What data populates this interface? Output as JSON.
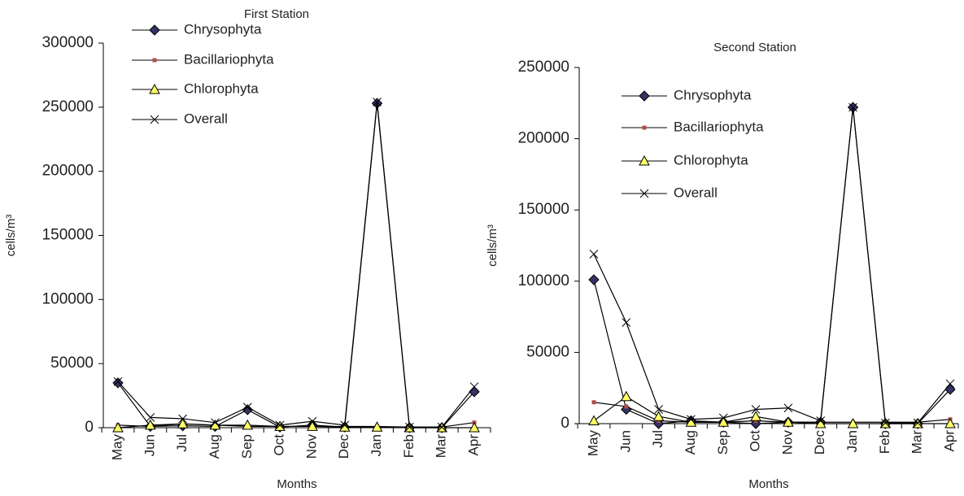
{
  "chart_data": [
    {
      "type": "line",
      "title": "First Station",
      "x_label": "Months",
      "y_label": "cells/m³",
      "categories": [
        "May",
        "Jun",
        "Jul",
        "Aug",
        "Sep",
        "Oct",
        "Nov",
        "Dec",
        "Jan",
        "Feb",
        "Mar",
        "Apr"
      ],
      "ylim": [
        0,
        300000
      ],
      "yticks": [
        0,
        50000,
        100000,
        150000,
        200000,
        250000,
        300000
      ],
      "series": [
        {
          "name": "Chrysophyta",
          "color": "#333366",
          "marker": "diamond",
          "values": [
            35000,
            1000,
            1500,
            1000,
            14000,
            500,
            2000,
            500,
            253000,
            0,
            0,
            28000
          ]
        },
        {
          "name": "Bacillariophyta",
          "color": "#b0504a",
          "marker": "square",
          "values": [
            2000,
            1000,
            3000,
            2000,
            1000,
            1000,
            1000,
            1000,
            1000,
            500,
            500,
            4000
          ]
        },
        {
          "name": "Chlorophyta",
          "color": "#ffff66",
          "marker": "triangle",
          "values": [
            0,
            2000,
            3000,
            2000,
            2000,
            1000,
            1000,
            500,
            500,
            0,
            0,
            0
          ]
        },
        {
          "name": "Overall",
          "color": "#000000",
          "marker": "cross",
          "values": [
            36000,
            8000,
            7000,
            4000,
            16000,
            2000,
            5000,
            2000,
            254000,
            500,
            500,
            32000
          ]
        }
      ]
    },
    {
      "type": "line",
      "title": "Second Station",
      "x_label": "Months",
      "y_label": "cells/m³",
      "categories": [
        "May",
        "Jun",
        "Jul",
        "Aug",
        "Sep",
        "Oct",
        "Nov",
        "Dec",
        "Jan",
        "Feb",
        "Mar",
        "Apr"
      ],
      "ylim": [
        0,
        250000
      ],
      "yticks": [
        0,
        50000,
        100000,
        150000,
        200000,
        250000
      ],
      "series": [
        {
          "name": "Chrysophyta",
          "color": "#333366",
          "marker": "diamond",
          "values": [
            101000,
            10000,
            0,
            2000,
            1000,
            0,
            1000,
            1000,
            222000,
            0,
            0,
            24000
          ]
        },
        {
          "name": "Bacillariophyta",
          "color": "#b0504a",
          "marker": "square",
          "values": [
            15000,
            12000,
            2000,
            1000,
            1000,
            2000,
            1000,
            1000,
            1000,
            1000,
            1000,
            3000
          ]
        },
        {
          "name": "Chlorophyta",
          "color": "#ffff66",
          "marker": "triangle",
          "values": [
            2000,
            19000,
            5000,
            1000,
            1000,
            5000,
            1000,
            0,
            0,
            0,
            0,
            0
          ]
        },
        {
          "name": "Overall",
          "color": "#000000",
          "marker": "cross",
          "values": [
            119000,
            71000,
            10000,
            3000,
            4000,
            10000,
            11000,
            2000,
            222000,
            500,
            500,
            28000
          ]
        }
      ]
    }
  ]
}
